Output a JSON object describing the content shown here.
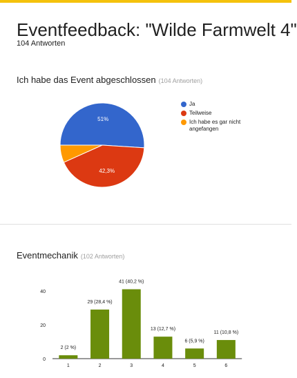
{
  "header": {
    "title": "Eventfeedback: \"Wilde Farmwelt 4\"",
    "responses": "104 Antworten"
  },
  "sections": [
    {
      "title": "Ich habe das Event abgeschlossen",
      "subtitle": "(104 Antworten)"
    },
    {
      "title": "Eventmechanik",
      "subtitle": "(102 Antworten)"
    }
  ],
  "chart_data": [
    {
      "type": "pie",
      "labels": [
        "Ja",
        "Teilweise",
        "Ich habe es gar nicht angefangen"
      ],
      "values": [
        51,
        42.3,
        6.7
      ],
      "slice_labels": [
        "51%",
        "42,3%",
        ""
      ],
      "colors": [
        "#3366cc",
        "#dc3912",
        "#ff9900"
      ],
      "legend": "right"
    },
    {
      "type": "bar",
      "categories": [
        "1",
        "2",
        "3",
        "4",
        "5",
        "6"
      ],
      "values": [
        2,
        29,
        41,
        13,
        6,
        11
      ],
      "data_labels": [
        "2 (2 %)",
        "29 (28,4 %)",
        "41 (40,2 %)",
        "13 (12,7 %)",
        "6 (5,9 %)",
        "11 (10,8 %)"
      ],
      "yticks": [
        0,
        20,
        40
      ],
      "ylim": [
        0,
        45
      ],
      "color": "#6a8d0b",
      "grid": false
    }
  ]
}
